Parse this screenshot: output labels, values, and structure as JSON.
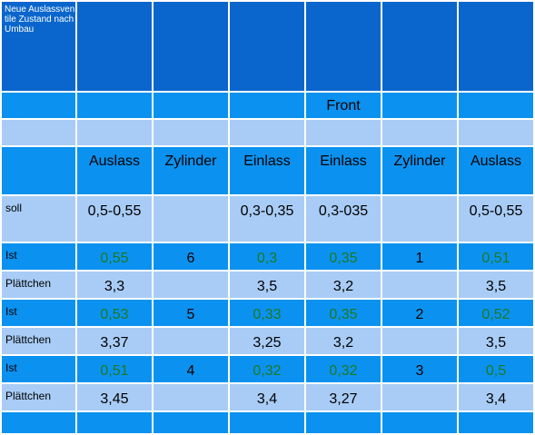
{
  "header": {
    "corner_text": "Neue Auslassventile Zustand nach Umbau",
    "front_label": "Front",
    "columns": [
      "Auslass",
      "Zylinder",
      "Einlass",
      "Einlass",
      "Zylinder",
      "Auslass"
    ]
  },
  "rows": [
    {
      "label": "soll",
      "cells": [
        "0,5-0,55",
        "",
        "0,3-0,35",
        "0,3-035",
        "",
        "0,5-0,55"
      ]
    },
    {
      "label": "Ist",
      "cells": [
        "0,55",
        "6",
        "0,3",
        "0,35",
        "1",
        "0,51"
      ]
    },
    {
      "label": "Plättchen",
      "cells": [
        "3,3",
        "",
        "3,5",
        "3,2",
        "",
        "3,5"
      ]
    },
    {
      "label": "Ist",
      "cells": [
        "0,53",
        "5",
        "0,33",
        "0,35",
        "2",
        "0,52"
      ]
    },
    {
      "label": "Plättchen",
      "cells": [
        "3,37",
        "",
        "3,25",
        "3,2",
        "",
        "3,5"
      ]
    },
    {
      "label": "Ist",
      "cells": [
        "0,51",
        "4",
        "0,32",
        "0,32",
        "3",
        "0,5"
      ]
    },
    {
      "label": "Plättchen",
      "cells": [
        "3,45",
        "",
        "3,4",
        "3,27",
        "",
        "3,4"
      ]
    }
  ],
  "colors": {
    "header_dark": "#0a66cc",
    "row_medium": "#0b92f0",
    "row_light": "#a8ccf5",
    "measured_value_green": "#1e7a1e"
  }
}
